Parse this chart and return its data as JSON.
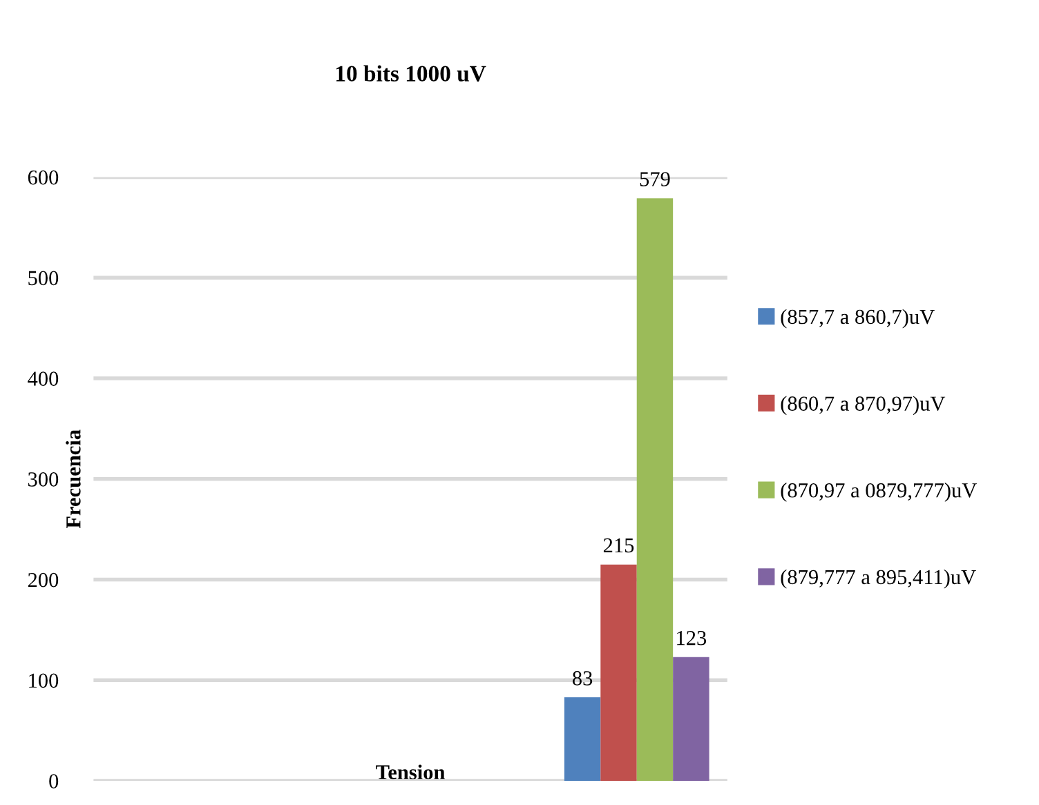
{
  "chart_data": {
    "type": "bar",
    "title": "10 bits 1000 uV",
    "xlabel": "Tension",
    "ylabel": "Frecuencia",
    "categories": [
      null
    ],
    "series": [
      {
        "name": "(857,7 a 860,7)uV",
        "color": "#4f81bd",
        "values": [
          83
        ]
      },
      {
        "name": "(860,7 a 870,97)uV",
        "color": "#c0504d",
        "values": [
          215
        ]
      },
      {
        "name": "(870,97 a 0879,777)uV",
        "color": "#9bbb59",
        "values": [
          579
        ]
      },
      {
        "name": "(879,777 a 895,411)uV",
        "color": "#8064a2",
        "values": [
          123
        ]
      }
    ],
    "ylim": [
      0,
      600
    ],
    "yticks": [
      0,
      100,
      200,
      300,
      400,
      500,
      600
    ],
    "grid": "y",
    "legend": "right",
    "data_labels": true
  }
}
